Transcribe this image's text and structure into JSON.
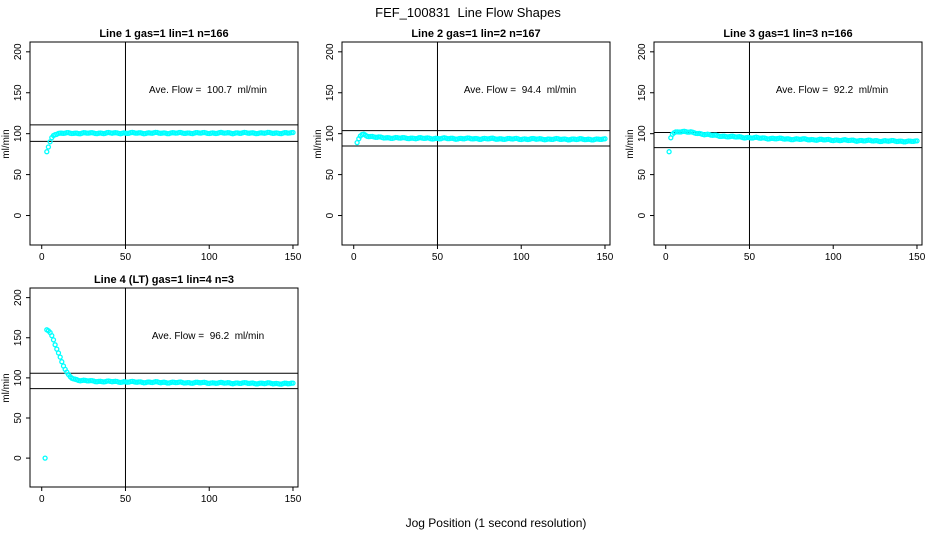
{
  "title": "FEF_100831  Line Flow Shapes",
  "xlabel": "Jog Position (1 second resolution)",
  "colors": {
    "points": "#00ffff",
    "lines": "#000000"
  },
  "chart_data": [
    {
      "type": "scatter",
      "title": "Line 1 gas=1 lin=1 n=166",
      "annotation": "Ave. Flow =  100.7  ml/min",
      "ave_flow": 100.7,
      "n": 166,
      "ylabel": "ml/min",
      "x_ticks": [
        0,
        50,
        100,
        150
      ],
      "y_ticks": [
        0,
        50,
        100,
        150,
        200
      ],
      "x_range": [
        -7,
        153
      ],
      "y_range": [
        -36,
        212
      ],
      "vline_x": 50,
      "hlines": [
        110.8,
        90.6
      ],
      "outliers": [
        [
          3,
          78
        ]
      ],
      "curve_keypoints": [
        [
          4,
          84
        ],
        [
          5,
          90
        ],
        [
          6,
          95
        ],
        [
          7,
          98
        ],
        [
          8,
          99.5
        ],
        [
          10,
          100.3
        ],
        [
          15,
          100.6
        ],
        [
          30,
          100.7
        ],
        [
          60,
          100.8
        ],
        [
          100,
          100.8
        ],
        [
          150,
          100.8
        ]
      ],
      "point_step": 1
    },
    {
      "type": "scatter",
      "title": "Line 2 gas=1 lin=2 n=167",
      "annotation": "Ave. Flow =  94.4  ml/min",
      "ave_flow": 94.4,
      "n": 167,
      "ylabel": "ml/min",
      "x_ticks": [
        0,
        50,
        100,
        150
      ],
      "y_ticks": [
        0,
        50,
        100,
        150,
        200
      ],
      "x_range": [
        -7,
        153
      ],
      "y_range": [
        -36,
        212
      ],
      "vline_x": 50,
      "hlines": [
        103.8,
        85.0
      ],
      "outliers": [],
      "curve_keypoints": [
        [
          2,
          88.5
        ],
        [
          3,
          94
        ],
        [
          4,
          97.5
        ],
        [
          5,
          99
        ],
        [
          6,
          99.2
        ],
        [
          8,
          97.5
        ],
        [
          10,
          96.5
        ],
        [
          14,
          95.5
        ],
        [
          20,
          95
        ],
        [
          30,
          94.6
        ],
        [
          50,
          94.2
        ],
        [
          80,
          93.8
        ],
        [
          110,
          93.4
        ],
        [
          150,
          93
        ]
      ],
      "point_step": 1
    },
    {
      "type": "scatter",
      "title": "Line 3 gas=1 lin=3 n=166",
      "annotation": "Ave. Flow =  92.2  ml/min",
      "ave_flow": 92.2,
      "n": 166,
      "ylabel": "ml/min",
      "x_ticks": [
        0,
        50,
        100,
        150
      ],
      "y_ticks": [
        0,
        50,
        100,
        150,
        200
      ],
      "x_range": [
        -7,
        153
      ],
      "y_range": [
        -36,
        212
      ],
      "vline_x": 50,
      "hlines": [
        101.4,
        83.0
      ],
      "outliers": [
        [
          2,
          78
        ]
      ],
      "curve_keypoints": [
        [
          3,
          95
        ],
        [
          4,
          99.5
        ],
        [
          5,
          101
        ],
        [
          6,
          102
        ],
        [
          8,
          102.8
        ],
        [
          12,
          102.4
        ],
        [
          16,
          101.3
        ],
        [
          20,
          100.2
        ],
        [
          25,
          98.8
        ],
        [
          30,
          97.6
        ],
        [
          40,
          96.2
        ],
        [
          50,
          95.2
        ],
        [
          65,
          94
        ],
        [
          80,
          93.2
        ],
        [
          100,
          92.2
        ],
        [
          120,
          91.4
        ],
        [
          150,
          90.5
        ]
      ],
      "point_step": 1
    },
    {
      "type": "scatter",
      "title": "Line 4 (LT) gas=1 lin=4 n=3",
      "annotation": "Ave. Flow =  96.2  ml/min",
      "ave_flow": 96.2,
      "n": 3,
      "ylabel": "ml/min",
      "x_ticks": [
        0,
        50,
        100,
        150
      ],
      "y_ticks": [
        0,
        50,
        100,
        150,
        200
      ],
      "x_range": [
        -7,
        153
      ],
      "y_range": [
        -36,
        212
      ],
      "vline_x": 50,
      "hlines": [
        105.8,
        86.6
      ],
      "outliers": [
        [
          2,
          0
        ]
      ],
      "curve_keypoints": [
        [
          3,
          160
        ],
        [
          4,
          159
        ],
        [
          5,
          156.5
        ],
        [
          6,
          152.5
        ],
        [
          7,
          147.5
        ],
        [
          8,
          142
        ],
        [
          9,
          136.5
        ],
        [
          10,
          131
        ],
        [
          11,
          125.5
        ],
        [
          12,
          120
        ],
        [
          13,
          115
        ],
        [
          14,
          110.5
        ],
        [
          15,
          106.5
        ],
        [
          16,
          103.5
        ],
        [
          17,
          101.5
        ],
        [
          18,
          100
        ],
        [
          19,
          99
        ],
        [
          20,
          98.2
        ],
        [
          22,
          97.3
        ],
        [
          25,
          96.6
        ],
        [
          30,
          96
        ],
        [
          40,
          95.4
        ],
        [
          50,
          95
        ],
        [
          70,
          94.4
        ],
        [
          100,
          93.8
        ],
        [
          125,
          93.3
        ],
        [
          150,
          92.8
        ]
      ],
      "point_step": 1
    }
  ]
}
